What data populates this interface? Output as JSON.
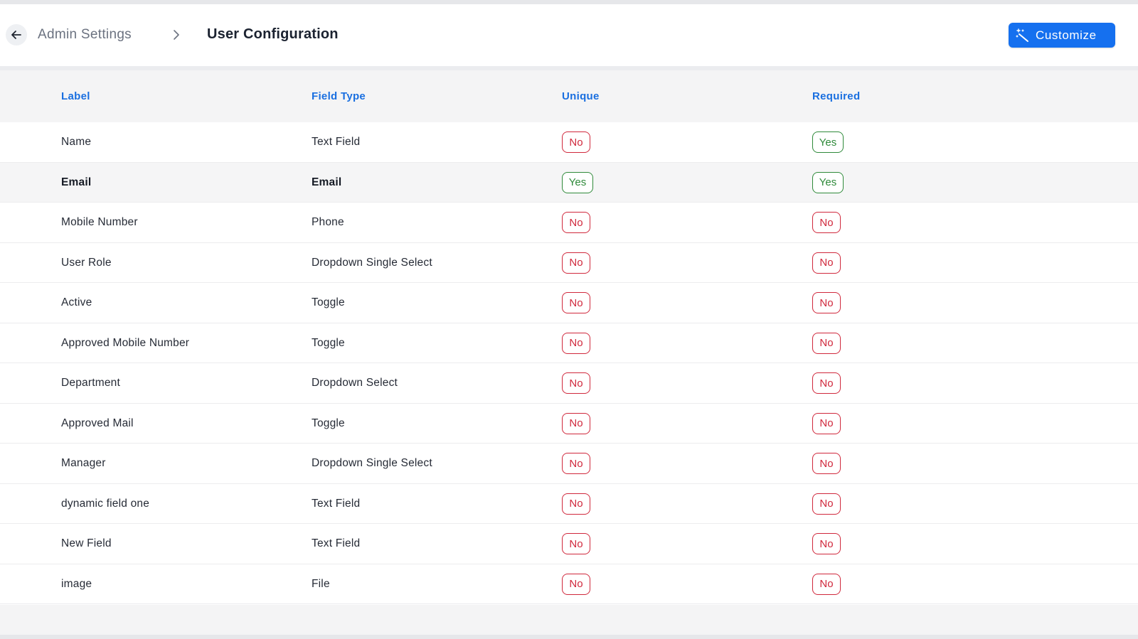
{
  "header": {
    "breadcrumb_parent": "Admin Settings",
    "breadcrumb_current": "User Configuration",
    "customize_label": "Customize"
  },
  "table": {
    "columns": [
      "Label",
      "Field Type",
      "Unique",
      "Required"
    ],
    "rows": [
      {
        "label": "Name",
        "field_type": "Text Field",
        "unique": "No",
        "required": "Yes"
      },
      {
        "label": "Email",
        "field_type": "Email",
        "unique": "Yes",
        "required": "Yes"
      },
      {
        "label": "Mobile Number",
        "field_type": "Phone",
        "unique": "No",
        "required": "No"
      },
      {
        "label": "User Role",
        "field_type": "Dropdown Single Select",
        "unique": "No",
        "required": "No"
      },
      {
        "label": "Active",
        "field_type": "Toggle",
        "unique": "No",
        "required": "No"
      },
      {
        "label": "Approved Mobile Number",
        "field_type": "Toggle",
        "unique": "No",
        "required": "No"
      },
      {
        "label": "Department",
        "field_type": "Dropdown Select",
        "unique": "No",
        "required": "No"
      },
      {
        "label": "Approved Mail",
        "field_type": "Toggle",
        "unique": "No",
        "required": "No"
      },
      {
        "label": "Manager",
        "field_type": "Dropdown Single Select",
        "unique": "No",
        "required": "No"
      },
      {
        "label": "dynamic field one",
        "field_type": "Text Field",
        "unique": "No",
        "required": "No"
      },
      {
        "label": "New Field",
        "field_type": "Text Field",
        "unique": "No",
        "required": "No"
      },
      {
        "label": "image",
        "field_type": "File",
        "unique": "No",
        "required": "No"
      }
    ]
  },
  "colors": {
    "accent": "#1570ef",
    "header_text": "#1a6fe0",
    "no_badge": "#d0283c",
    "yes_badge": "#2f8a3a"
  },
  "icons": {
    "back": "arrow-left-icon",
    "separator": "chevron-right-icon",
    "customize": "magic-wand-icon"
  }
}
